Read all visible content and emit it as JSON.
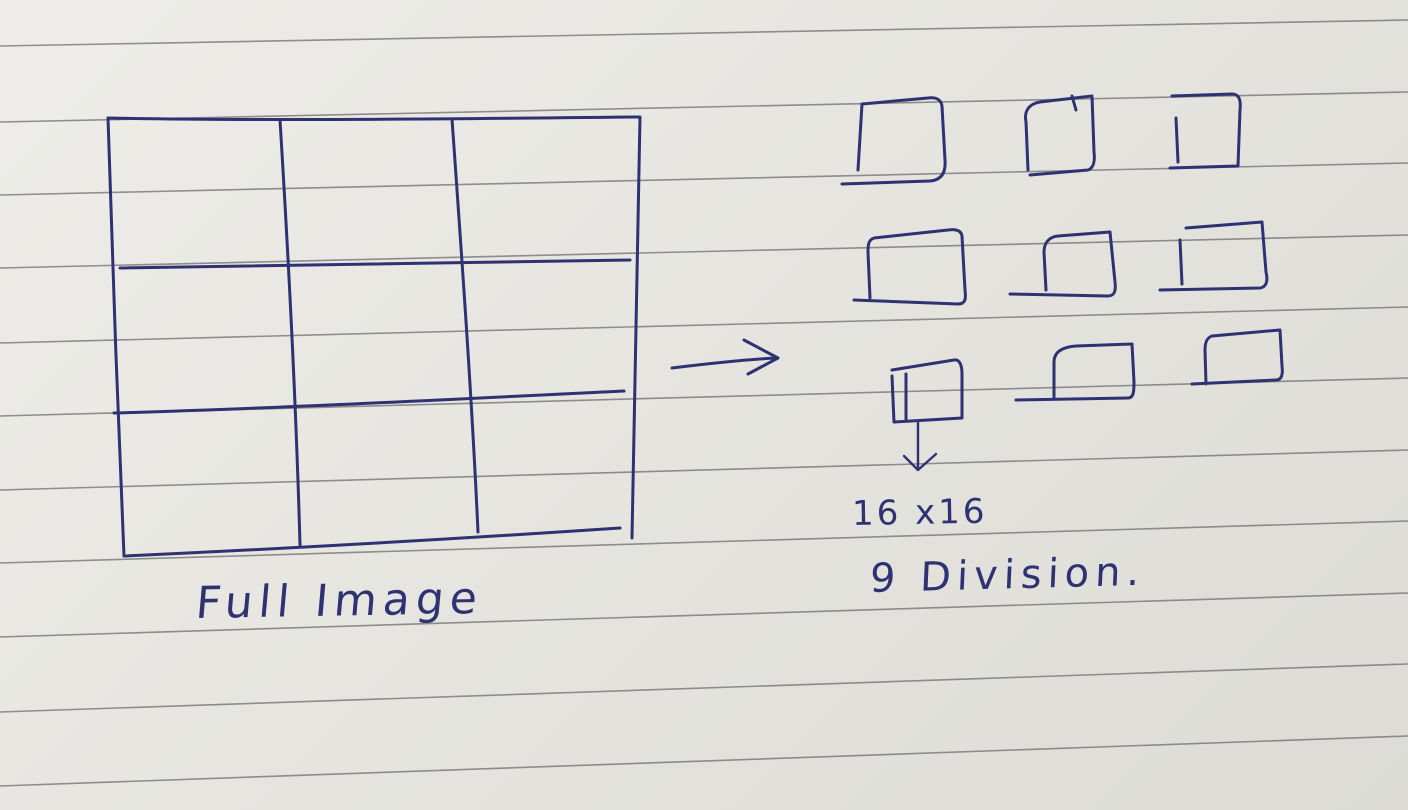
{
  "diagram": {
    "full_image_label": "Full Image",
    "tile_size_label": "16 x16",
    "divisions_label": "9 Division.",
    "ink_color": "#2e3272",
    "rule_color": "#6f6f72",
    "paper_color": "#e8e7e2",
    "grid": {
      "rows": 3,
      "columns": 3
    },
    "tiles": {
      "count": 9,
      "rows": 3,
      "columns": 3
    }
  }
}
